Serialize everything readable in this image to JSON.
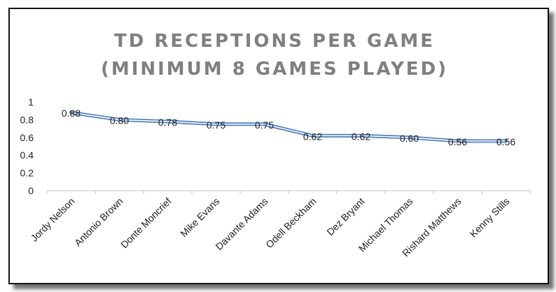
{
  "chart_data": {
    "type": "line",
    "title_lines": [
      "TD RECEPTIONS PER GAME",
      "(MINIMUM 8 GAMES PLAYED)"
    ],
    "categories": [
      "Jordy Nelson",
      "Antonio Brown",
      "Donte Moncrief",
      "Mike Evans",
      "Davante Adams",
      "Odell Beckham",
      "Dez Bryant",
      "Michael Thomas",
      "Rishard Matthews",
      "Kenny Stills"
    ],
    "values": [
      0.88,
      0.8,
      0.78,
      0.75,
      0.75,
      0.62,
      0.62,
      0.6,
      0.56,
      0.56
    ],
    "data_labels": [
      "0.88",
      "0.80",
      "0.78",
      "0.75",
      "0.75",
      "0.62",
      "0.62",
      "0.60",
      "0.56",
      "0.56"
    ],
    "y_ticks": [
      0,
      0.2,
      0.4,
      0.6,
      0.8,
      1
    ],
    "y_tick_labels": [
      "0",
      "0.2",
      "0.4",
      "0.6",
      "0.8",
      "1"
    ],
    "ylim": [
      0,
      1
    ],
    "grid": false,
    "legend": "none",
    "line_color": "#4f81bd"
  }
}
